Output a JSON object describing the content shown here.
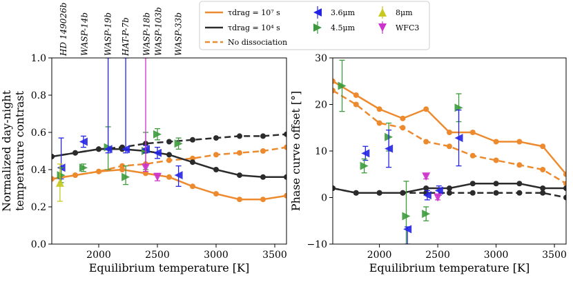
{
  "colors": {
    "orange": "#ee8a2e",
    "dark": "#2b2b2b",
    "blue": "#2323e6",
    "green": "#3c9a3c",
    "yellow": "#c8c81e",
    "magenta": "#cc33cc",
    "purple": "#8a2aa8"
  },
  "legend": {
    "items": [
      {
        "key": "orange_solid",
        "label": "τdrag = 10⁷ s"
      },
      {
        "key": "dark_solid",
        "label": "τdrag = 10⁴ s"
      },
      {
        "key": "orange_dashed",
        "label": "No dissociation"
      },
      {
        "key": "obs_36",
        "label": "3.6μm"
      },
      {
        "key": "obs_45",
        "label": "4.5μm"
      },
      {
        "key": "obs_8",
        "label": "8μm"
      },
      {
        "key": "obs_wfc3",
        "label": "WFC3"
      }
    ]
  },
  "chart_data": [
    {
      "type": "line",
      "xlabel": "Equilibrium temperature [K]",
      "ylabel_lines": [
        "Normalized day-night",
        "temperature contrast"
      ],
      "xlim": [
        1600,
        3600
      ],
      "ylim": [
        0,
        1.0
      ],
      "xticks": [
        2000,
        2500,
        3000,
        3500
      ],
      "yticks": [
        0.0,
        0.2,
        0.4,
        0.6,
        0.8,
        1.0
      ],
      "ytick_labels": [
        "0.0",
        "0.2",
        "0.4",
        "0.6",
        "0.8",
        "1.0"
      ],
      "x": [
        1600,
        1800,
        2000,
        2200,
        2400,
        2600,
        2800,
        3000,
        3200,
        3400,
        3600
      ],
      "series": [
        {
          "name": "tdrag_1e7",
          "color_key": "orange",
          "dash": false,
          "values": [
            0.35,
            0.37,
            0.39,
            0.4,
            0.38,
            0.36,
            0.31,
            0.27,
            0.24,
            0.24,
            0.26
          ]
        },
        {
          "name": "tdrag_1e4",
          "color_key": "dark",
          "dash": false,
          "values": [
            0.47,
            0.49,
            0.51,
            0.51,
            0.5,
            0.48,
            0.44,
            0.4,
            0.37,
            0.36,
            0.36
          ]
        },
        {
          "name": "no_dissociation_1e7",
          "color_key": "orange",
          "dash": true,
          "values": [
            0.35,
            0.37,
            0.39,
            0.42,
            0.43,
            0.45,
            0.46,
            0.48,
            0.49,
            0.5,
            0.52
          ]
        },
        {
          "name": "no_dissociation_1e4",
          "color_key": "dark",
          "dash": true,
          "values": [
            0.47,
            0.49,
            0.51,
            0.52,
            0.54,
            0.55,
            0.56,
            0.57,
            0.58,
            0.58,
            0.59
          ]
        }
      ],
      "observations": [
        {
          "band": "3.6",
          "marker": "left",
          "color_key": "blue",
          "x": 1680,
          "y": 0.41,
          "yerr": [
            0.06,
            0.16
          ]
        },
        {
          "band": "4.5",
          "marker": "right",
          "color_key": "green",
          "x": 1680,
          "y": 0.37,
          "yerr": [
            0.04,
            0.04
          ]
        },
        {
          "band": "8",
          "marker": "up",
          "color_key": "yellow",
          "x": 1670,
          "y": 0.33,
          "yerr": [
            0.1,
            0.1
          ]
        },
        {
          "band": "3.6",
          "marker": "left",
          "color_key": "blue",
          "x": 1870,
          "y": 0.55,
          "yerr": [
            0.03,
            0.03
          ]
        },
        {
          "band": "4.5",
          "marker": "right",
          "color_key": "green",
          "x": 1870,
          "y": 0.41,
          "yerr": [
            0.02,
            0.02
          ]
        },
        {
          "band": "4.5",
          "marker": "right",
          "color_key": "green",
          "x": 2080,
          "y": 0.52,
          "yerr": [
            0.12,
            0.11
          ]
        },
        {
          "band": "3.6",
          "marker": "left",
          "color_key": "blue",
          "x": 2080,
          "y": 0.51,
          "yerr": [
            0.02,
            0.49
          ]
        },
        {
          "band": "4.5",
          "marker": "right",
          "color_key": "green",
          "x": 2230,
          "y": 0.36,
          "yerr": [
            0.04,
            0.06
          ]
        },
        {
          "band": "3.6",
          "marker": "left",
          "color_key": "blue",
          "x": 2230,
          "y": 0.51,
          "yerr": [
            0.02,
            0.49
          ]
        },
        {
          "band": "4.5",
          "marker": "right",
          "color_key": "green",
          "x": 2400,
          "y": 0.5,
          "yerr": [
            0.1,
            0.1
          ]
        },
        {
          "band": "3.6",
          "marker": "left",
          "color_key": "blue",
          "x": 2400,
          "y": 0.51,
          "yerr": [
            0.02,
            0.02
          ]
        },
        {
          "band": "wfc3",
          "marker": "down",
          "color_key": "magenta",
          "x": 2400,
          "y": 0.41,
          "yerr": [
            0.02,
            0.59
          ]
        },
        {
          "band": "4.5",
          "marker": "right",
          "color_key": "green",
          "x": 2500,
          "y": 0.59,
          "yerr": [
            0.03,
            0.03
          ]
        },
        {
          "band": "3.6",
          "marker": "left",
          "color_key": "blue",
          "x": 2500,
          "y": 0.49,
          "yerr": [
            0.03,
            0.03
          ]
        },
        {
          "band": "wfc3",
          "marker": "down",
          "color_key": "magenta",
          "x": 2500,
          "y": 0.36,
          "yerr": [
            0.02,
            0.02
          ]
        },
        {
          "band": "4.5",
          "marker": "right",
          "color_key": "green",
          "x": 2680,
          "y": 0.54,
          "yerr": [
            0.03,
            0.03
          ]
        },
        {
          "band": "3.6",
          "marker": "left",
          "color_key": "blue",
          "x": 2680,
          "y": 0.37,
          "yerr": [
            0.06,
            0.05
          ]
        }
      ],
      "planet_labels": [
        {
          "name": "HD 149026b",
          "x": 1700
        },
        {
          "name": "WASP-14b",
          "x": 1880
        },
        {
          "name": "WASP-19b",
          "x": 2080
        },
        {
          "name": "HAT-P-7b",
          "x": 2230
        },
        {
          "name": "WASP-18b",
          "x": 2410
        },
        {
          "name": "WASP-103b",
          "x": 2510
        },
        {
          "name": "WASP-33b",
          "x": 2680
        }
      ]
    },
    {
      "type": "line",
      "xlabel": "Equilibrium temperature [K]",
      "ylabel": "Phase curve offset [°]",
      "xlim": [
        1600,
        3600
      ],
      "ylim": [
        -10,
        30
      ],
      "xticks": [
        2000,
        2500,
        3000,
        3500
      ],
      "yticks": [
        -10,
        0,
        10,
        20,
        30
      ],
      "ytick_labels": [
        "−10",
        "0",
        "10",
        "20",
        "30"
      ],
      "x": [
        1600,
        1800,
        2000,
        2200,
        2400,
        2600,
        2800,
        3000,
        3200,
        3400,
        3600
      ],
      "series": [
        {
          "name": "tdrag_1e7",
          "color_key": "orange",
          "dash": false,
          "values": [
            25,
            22,
            19,
            17,
            19,
            14,
            14,
            12,
            12,
            11,
            5
          ]
        },
        {
          "name": "tdrag_1e4",
          "color_key": "dark",
          "dash": false,
          "values": [
            2,
            1,
            1,
            1,
            2,
            2,
            3,
            3,
            3,
            2,
            2
          ]
        },
        {
          "name": "no_dissociation_1e7",
          "color_key": "orange",
          "dash": true,
          "values": [
            23,
            20,
            16,
            15,
            12,
            11,
            9,
            8,
            7,
            6,
            3
          ]
        },
        {
          "name": "no_dissociation_1e4",
          "color_key": "dark",
          "dash": true,
          "values": [
            2,
            1,
            1,
            1,
            1,
            1,
            1,
            1,
            1,
            1,
            0
          ]
        }
      ],
      "observations": [
        {
          "band": "4.5",
          "marker": "right",
          "color_key": "green",
          "x": 1680,
          "y": 24,
          "yerr": [
            5.5,
            5.5
          ]
        },
        {
          "band": "3.6",
          "marker": "left",
          "color_key": "blue",
          "x": 1880,
          "y": 9.5,
          "yerr": [
            1.5,
            1.5
          ]
        },
        {
          "band": "4.5",
          "marker": "right",
          "color_key": "green",
          "x": 1870,
          "y": 6.8,
          "yerr": [
            1.5,
            1.5
          ]
        },
        {
          "band": "4.5",
          "marker": "right",
          "color_key": "green",
          "x": 2080,
          "y": 13,
          "yerr": [
            3,
            3
          ]
        },
        {
          "band": "3.6",
          "marker": "left",
          "color_key": "blue",
          "x": 2080,
          "y": 10.5,
          "yerr": [
            4,
            4
          ]
        },
        {
          "band": "4.5",
          "marker": "right",
          "color_key": "green",
          "x": 2230,
          "y": -4,
          "yerr": [
            7,
            7.5
          ]
        },
        {
          "band": "3.6",
          "marker": "left",
          "color_key": "blue",
          "x": 2240,
          "y": -6.8,
          "yerr": [
            3.2,
            0.5
          ]
        },
        {
          "band": "wfc3",
          "marker": "down",
          "color_key": "magenta",
          "x": 2400,
          "y": 4.5,
          "yerr": [
            0.5,
            0.5
          ]
        },
        {
          "band": "4.5",
          "marker": "right",
          "color_key": "green",
          "x": 2400,
          "y": -3.5,
          "yerr": [
            1.5,
            1.5
          ]
        },
        {
          "band": "3.6",
          "marker": "left",
          "color_key": "blue",
          "x": 2410,
          "y": 0.5,
          "yerr": [
            1,
            1
          ]
        },
        {
          "band": "3.6",
          "marker": "left",
          "color_key": "blue",
          "x": 2510,
          "y": 1.5,
          "yerr": [
            1,
            1
          ]
        },
        {
          "band": "wfc3",
          "marker": "down",
          "color_key": "magenta",
          "x": 2500,
          "y": 0,
          "yerr": [
            0.5,
            0.5
          ]
        },
        {
          "band": "4.5",
          "marker": "right",
          "color_key": "green",
          "x": 2680,
          "y": 19.3,
          "yerr": [
            3,
            3
          ]
        },
        {
          "band": "3.6",
          "marker": "left",
          "color_key": "blue",
          "x": 2680,
          "y": 12.8,
          "yerr": [
            6,
            6
          ]
        }
      ]
    }
  ]
}
